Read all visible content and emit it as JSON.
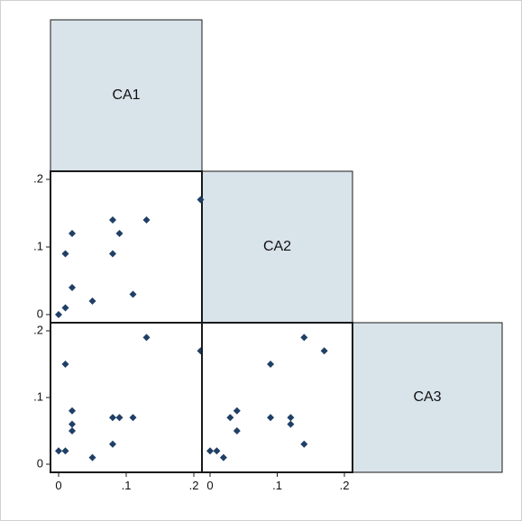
{
  "chart_data": {
    "type": "scatter",
    "subtype": "scatter-matrix-lower-half",
    "variables": [
      "CA1",
      "CA2",
      "CA3"
    ],
    "marker_color": "#1f3f66",
    "diagonal_fill": "#d9e3ea",
    "axis_range": [
      0,
      0.2
    ],
    "tick_values": [
      0,
      0.1,
      0.2
    ],
    "tick_labels": [
      "0",
      ".1",
      ".2"
    ],
    "panels": [
      {
        "x_var": "CA1",
        "y_var": "CA2",
        "points": [
          [
            0.0,
            0.0
          ],
          [
            0.01,
            0.01
          ],
          [
            0.01,
            0.09
          ],
          [
            0.02,
            0.04
          ],
          [
            0.02,
            0.12
          ],
          [
            0.05,
            0.02
          ],
          [
            0.08,
            0.09
          ],
          [
            0.08,
            0.14
          ],
          [
            0.09,
            0.12
          ],
          [
            0.11,
            0.03
          ],
          [
            0.13,
            0.14
          ],
          [
            0.21,
            0.17
          ]
        ]
      },
      {
        "x_var": "CA1",
        "y_var": "CA3",
        "points": [
          [
            0.0,
            0.02
          ],
          [
            0.01,
            0.02
          ],
          [
            0.01,
            0.15
          ],
          [
            0.02,
            0.05
          ],
          [
            0.02,
            0.06
          ],
          [
            0.02,
            0.08
          ],
          [
            0.05,
            0.01
          ],
          [
            0.08,
            0.03
          ],
          [
            0.08,
            0.07
          ],
          [
            0.09,
            0.07
          ],
          [
            0.11,
            0.07
          ],
          [
            0.13,
            0.19
          ],
          [
            0.21,
            0.17
          ]
        ]
      },
      {
        "x_var": "CA2",
        "y_var": "CA3",
        "points": [
          [
            0.0,
            0.02
          ],
          [
            0.01,
            0.02
          ],
          [
            0.02,
            0.01
          ],
          [
            0.03,
            0.07
          ],
          [
            0.04,
            0.05
          ],
          [
            0.04,
            0.08
          ],
          [
            0.09,
            0.07
          ],
          [
            0.09,
            0.15
          ],
          [
            0.12,
            0.06
          ],
          [
            0.12,
            0.07
          ],
          [
            0.14,
            0.03
          ],
          [
            0.14,
            0.19
          ],
          [
            0.17,
            0.17
          ]
        ]
      }
    ]
  }
}
